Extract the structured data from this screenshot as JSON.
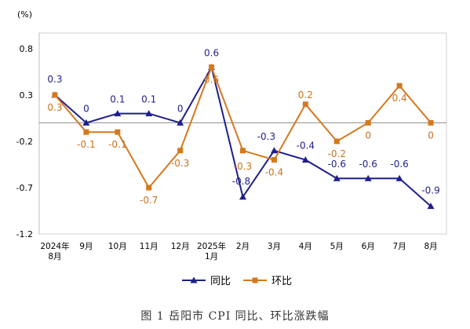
{
  "caption": "图 1 岳阳市 CPI 同比、环比涨跌幅",
  "chart_data": {
    "type": "line",
    "ylabel": "(%)",
    "ylim": [
      -1.2,
      0.8
    ],
    "yticks": [
      0.8,
      0.3,
      -0.2,
      -0.7,
      -1.2
    ],
    "yticklabels": [
      "0.8",
      "0.3",
      "-0.2",
      "-0.7",
      "-1.2"
    ],
    "categories": [
      [
        "2024年",
        "8月"
      ],
      [
        "9月"
      ],
      [
        "10月"
      ],
      [
        "11月"
      ],
      [
        "12月"
      ],
      [
        "2025年",
        "1月"
      ],
      [
        "2月"
      ],
      [
        "3月"
      ],
      [
        "4月"
      ],
      [
        "5月"
      ],
      [
        "6月"
      ],
      [
        "7月"
      ],
      [
        "8月"
      ]
    ],
    "series": [
      {
        "name": "同比",
        "color": "#1f1f8c",
        "marker": "triangle",
        "values": [
          0.3,
          0,
          0.1,
          0.1,
          0,
          0.6,
          -0.8,
          -0.3,
          -0.4,
          -0.6,
          -0.6,
          -0.6,
          -0.9
        ],
        "labels": [
          "0.3",
          "0",
          "0.1",
          "0.1",
          "0",
          "0.6",
          "-0.8",
          "-0.3",
          "-0.4",
          "-0.6",
          "-0.6",
          "-0.6",
          "-0.9"
        ]
      },
      {
        "name": "环比",
        "color": "#d4791e",
        "label_color": "#c8731c",
        "marker": "square",
        "values": [
          0.3,
          -0.1,
          -0.1,
          -0.7,
          -0.3,
          0.6,
          -0.3,
          -0.4,
          0.2,
          -0.2,
          0,
          0.4,
          0
        ],
        "labels": [
          "0.3",
          "-0.1",
          "-0.1",
          "-0.7",
          "-0.3",
          "0.6",
          "-0.3",
          "-0.4",
          "0.2",
          "-0.2",
          "0",
          "0.4",
          "0"
        ]
      }
    ],
    "legend": "bottom-center",
    "reference_line": 0
  }
}
